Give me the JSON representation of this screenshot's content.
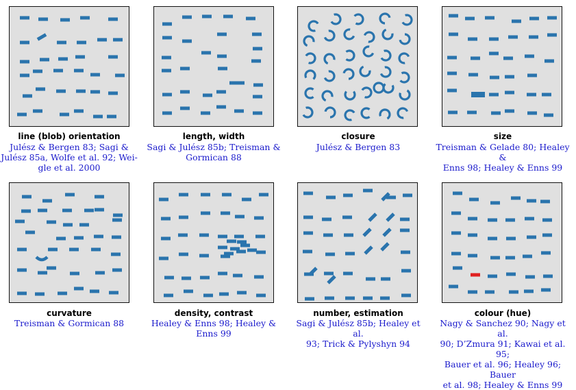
{
  "colors": {
    "mark": "#2a74ad",
    "target": "#e02020",
    "panel": "#e0e0e0",
    "refs": "#1a1acc"
  },
  "panels": [
    {
      "id": "orientation",
      "title": "line (blob) orientation",
      "references": [
        "Julész & Bergen 83; Sagi &",
        "Julész 85a, Wolfe et al. 92; Wei-",
        "gle et al. 2000"
      ]
    },
    {
      "id": "length",
      "title": "length, width",
      "references": [
        "Sagi & Julész 85b; Treisman &",
        "Gormican 88"
      ]
    },
    {
      "id": "closure",
      "title": "closure",
      "references": [
        "Julész & Bergen 83"
      ]
    },
    {
      "id": "size",
      "title": "size",
      "references": [
        "Treisman & Gelade 80; Healey &",
        "Enns 98; Healey & Enns 99"
      ]
    },
    {
      "id": "curvature",
      "title": "curvature",
      "references": [
        "Treisman & Gormican 88"
      ]
    },
    {
      "id": "density",
      "title": "density, contrast",
      "references": [
        "Healey & Enns 98; Healey &",
        "Enns 99"
      ]
    },
    {
      "id": "number",
      "title": "number, estimation",
      "references": [
        "Sagi & Julész 85b; Healey et al.",
        "93; Trick & Pylyshyn 94"
      ]
    },
    {
      "id": "colour",
      "title": "colour (hue)",
      "references": [
        "Nagy & Sanchez 90; Nagy et al.",
        "90; D’Zmura 91; Kawai et al. 95;",
        "Bauer et al. 96; Healey 96; Bauer",
        "et al. 98; Healey & Enns 99"
      ]
    }
  ]
}
